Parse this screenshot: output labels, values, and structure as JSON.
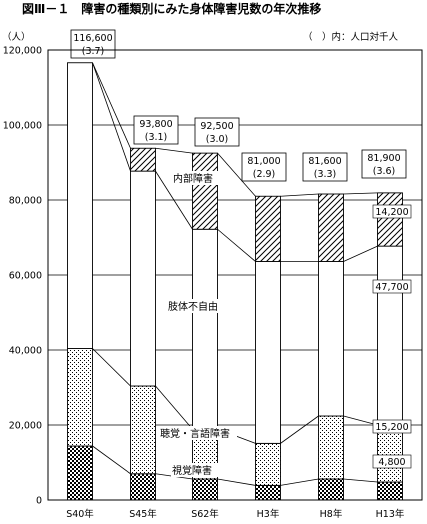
{
  "chart_data": {
    "type": "bar",
    "title": "図Ⅲ－１　障害の種類別にみた身体障害児数の年次推移",
    "unit_label": "（人）",
    "note": "（　）内：人口対千人",
    "categories": [
      "S40年",
      "S45年",
      "S62年",
      "H3年",
      "H8年",
      "H13年"
    ],
    "stacked": true,
    "ylim": [
      0,
      120000
    ],
    "yticks": [
      0,
      20000,
      40000,
      60000,
      80000,
      100000,
      120000
    ],
    "ytick_labels": [
      "0",
      "20,000",
      "40,000",
      "60,000",
      "80,000",
      "100,000",
      "120,000"
    ],
    "grid": true,
    "series": [
      {
        "name": "視覚障害",
        "values": [
          14400,
          7000,
          5600,
          3900,
          5600,
          4800
        ]
      },
      {
        "name": "聴覚・言語障害",
        "values": [
          26000,
          23400,
          13300,
          11200,
          16800,
          15200
        ]
      },
      {
        "name": "肢体不自由",
        "values": [
          76200,
          57300,
          53300,
          48500,
          41200,
          47700
        ]
      },
      {
        "name": "内部障害",
        "values": [
          0,
          6100,
          20300,
          17400,
          18000,
          14200
        ]
      }
    ],
    "totals": [
      116600,
      93800,
      92500,
      81000,
      81600,
      81900
    ],
    "total_labels": [
      "116,600",
      "93,800",
      "92,500",
      "81,000",
      "81,600",
      "81,900"
    ],
    "rate_labels": [
      "(3.7)",
      "(3.1)",
      "(3.0)",
      "(2.9)",
      "(3.3)",
      "(3.6)"
    ],
    "data_labels_last": [
      "14,200",
      "47,700",
      "15,200",
      "4,800"
    ],
    "series_labels": [
      "視覚障害",
      "聴覚・言語障害",
      "肢体不自由",
      "内部障害"
    ]
  }
}
